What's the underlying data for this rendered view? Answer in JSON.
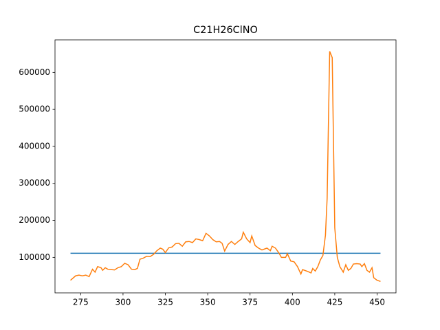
{
  "chart_data": {
    "type": "line",
    "title": "C21H26ClNO",
    "series": [
      {
        "color": "#1f77b4",
        "x": [
          269,
          452
        ],
        "values": [
          111000,
          111000
        ]
      },
      {
        "color": "#ff7f0e",
        "x": [
          269,
          272,
          274,
          276,
          278,
          280,
          282,
          283.5,
          285,
          287,
          288,
          289.5,
          291,
          293,
          295,
          297,
          299,
          301,
          303,
          305,
          307,
          308.5,
          310,
          312,
          314,
          316,
          318,
          320,
          322,
          323.5,
          325,
          327,
          329,
          331,
          333,
          335,
          337,
          339,
          341,
          343,
          345,
          347,
          349,
          351,
          353,
          355,
          357,
          358.5,
          360,
          362,
          364,
          366,
          368,
          370,
          371,
          373,
          375,
          376,
          378,
          380,
          382,
          385,
          387,
          388,
          390,
          392,
          393.5,
          396,
          397,
          399,
          401,
          403,
          405,
          406,
          409,
          411,
          412,
          413.5,
          415,
          416.5,
          418,
          419.5,
          420.5,
          422,
          423.5,
          425,
          426.5,
          428,
          430,
          431.5,
          433,
          434.5,
          436,
          438,
          440,
          441,
          442.5,
          444,
          445.5,
          447,
          448,
          450,
          452
        ],
        "values": [
          38000,
          50000,
          52000,
          50000,
          52000,
          48000,
          68000,
          60000,
          75000,
          72000,
          65000,
          72000,
          68000,
          67000,
          66000,
          72000,
          75000,
          84000,
          80000,
          68000,
          67000,
          70000,
          95000,
          98000,
          103000,
          102000,
          108000,
          118000,
          125000,
          122000,
          113000,
          126000,
          128000,
          137000,
          138000,
          130000,
          142000,
          143000,
          140000,
          150000,
          148000,
          145000,
          165000,
          158000,
          148000,
          142000,
          143000,
          138000,
          117000,
          135000,
          143000,
          135000,
          143000,
          150000,
          168000,
          150000,
          140000,
          158000,
          132000,
          125000,
          120000,
          125000,
          118000,
          130000,
          125000,
          112000,
          100000,
          100000,
          110000,
          90000,
          88000,
          75000,
          55000,
          67000,
          62000,
          58000,
          70000,
          63000,
          75000,
          93000,
          105000,
          160000,
          260000,
          657000,
          640000,
          180000,
          100000,
          75000,
          60000,
          80000,
          65000,
          70000,
          82000,
          83000,
          82000,
          75000,
          83000,
          65000,
          60000,
          72000,
          45000,
          38000,
          35000
        ]
      }
    ],
    "xlim": [
      259.85,
      461.15
    ],
    "xticks": [
      275,
      300,
      325,
      350,
      375,
      400,
      425,
      450
    ],
    "ylim": [
      4000,
      688000
    ],
    "yticks": [
      100000,
      200000,
      300000,
      400000,
      500000,
      600000
    ]
  }
}
